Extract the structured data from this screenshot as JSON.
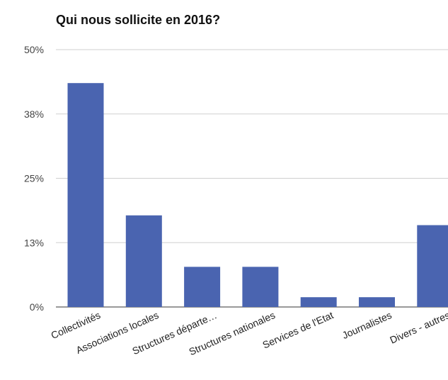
{
  "chart_data": {
    "type": "bar",
    "title": "Qui nous sollicite en 2016?",
    "categories": [
      "Collectivités",
      "Associations locales",
      "Structures départe…",
      "Structures nationales",
      "Services de l'Etat",
      "Journalistes",
      "Divers - autres"
    ],
    "values": [
      43.5,
      17.8,
      7.8,
      7.8,
      1.9,
      1.9,
      15.9
    ],
    "yticks": [
      "0%",
      "13%",
      "25%",
      "38%",
      "50%"
    ],
    "ylim": [
      0,
      50
    ],
    "xlabel": "",
    "ylabel": "",
    "grid": true,
    "legend": "none",
    "bar_color": "#4a64b0"
  }
}
